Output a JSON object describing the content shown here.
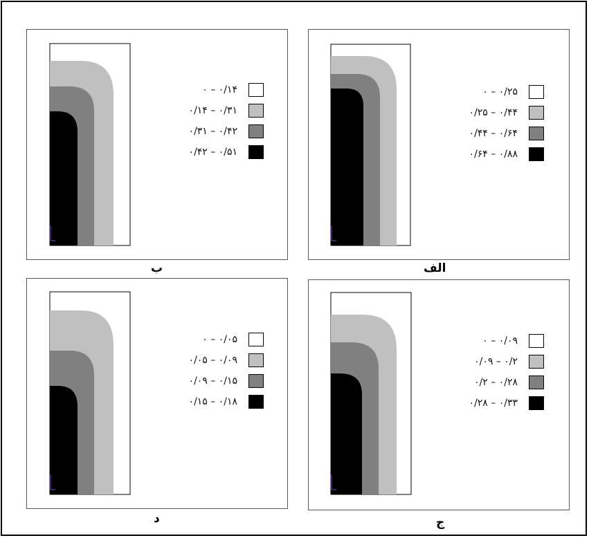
{
  "colors": {
    "level_0": "#ffffff",
    "level_1": "#c0c0c0",
    "level_2": "#808080",
    "level_3": "#000000",
    "axis_mark": "#7b3fd6"
  },
  "panels": [
    {
      "id": "alef",
      "caption": "الف",
      "legend": [
        {
          "label": "۰ – ۰/۲۵"
        },
        {
          "label": "۰/۲۵ – ۰/۴۴"
        },
        {
          "label": "۰/۴۴ – ۰/۶۴"
        },
        {
          "label": "۰/۶۴ – ۰/۸۸"
        }
      ]
    },
    {
      "id": "be",
      "caption": "ب",
      "legend": [
        {
          "label": "۰ – ۰/۱۴"
        },
        {
          "label": "۰/۱۴ – ۰/۳۱"
        },
        {
          "label": "۰/۳۱ – ۰/۴۲"
        },
        {
          "label": "۰/۴۲ – ۰/۵۱"
        }
      ]
    },
    {
      "id": "jim",
      "caption": "ج",
      "legend": [
        {
          "label": "۰ – ۰/۰۹"
        },
        {
          "label": "۰/۰۹ – ۰/۲"
        },
        {
          "label": "۰/۲ – ۰/۲۸"
        },
        {
          "label": "۰/۲۸ – ۰/۳۳"
        }
      ]
    },
    {
      "id": "dal",
      "caption": "د",
      "legend": [
        {
          "label": "۰ – ۰/۰۵"
        },
        {
          "label": "۰/۰۵ – ۰/۰۹"
        },
        {
          "label": "۰/۰۹ – ۰/۱۵"
        },
        {
          "label": "۰/۱۵ – ۰/۱۸"
        }
      ]
    }
  ]
}
